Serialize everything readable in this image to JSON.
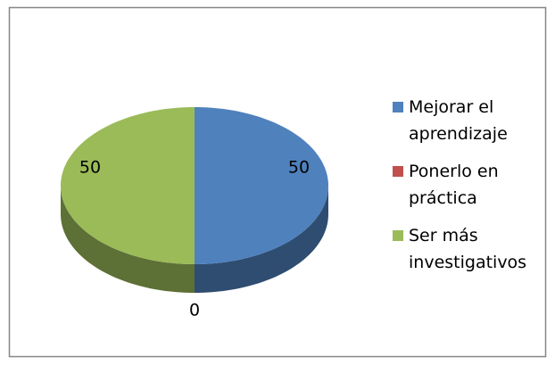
{
  "chart_data": {
    "type": "pie3d",
    "categories": [
      "Mejorar el aprendizaje",
      "Ponerlo en práctica",
      "Ser más investigativos"
    ],
    "values": [
      50,
      0,
      50
    ],
    "colors": [
      "#4f81bd",
      "#c0504d",
      "#9bbb59"
    ],
    "legend": "right"
  }
}
